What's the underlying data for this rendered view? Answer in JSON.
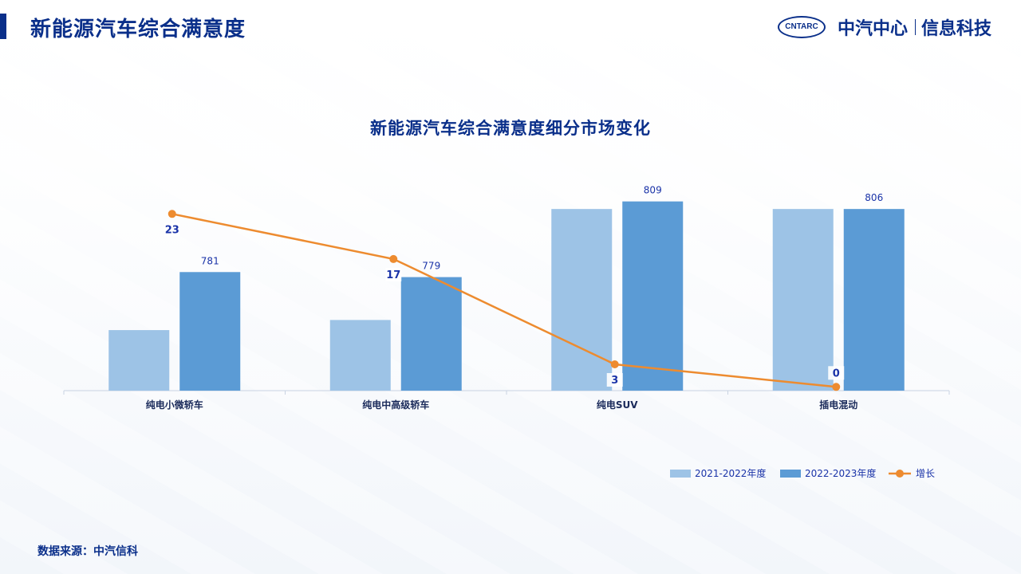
{
  "header": {
    "title": "新能源汽车综合满意度",
    "logo_badge": "CNTARC",
    "logo_cn": "中汽中心",
    "logo_tech": "信息科技"
  },
  "colors": {
    "primary": "#0a2f8a",
    "series_2021": "#9dc3e6",
    "series_2022": "#5b9bd5",
    "growth": "#ed8b2f"
  },
  "chart_data": {
    "type": "bar",
    "title": "新能源汽车综合满意度细分市场变化",
    "categories": [
      "纯电小微轿车",
      "纯电中高级轿车",
      "纯电SUV",
      "插电混动"
    ],
    "series": [
      {
        "name": "2021-2022年度",
        "type": "bar",
        "values": [
          758,
          762,
          806,
          806
        ],
        "labels": [
          "",
          "",
          "",
          ""
        ]
      },
      {
        "name": "2022-2023年度",
        "type": "bar",
        "values": [
          781,
          779,
          809,
          806
        ],
        "labels": [
          "781",
          "779",
          "809",
          "806"
        ]
      },
      {
        "name": "增长",
        "type": "line",
        "values": [
          23,
          17,
          3,
          0
        ],
        "labels": [
          "23",
          "17",
          "3",
          "0"
        ]
      }
    ],
    "bar_ylim": [
      734,
      813
    ],
    "line_ylim": [
      -0.5,
      26
    ],
    "legend_position": "bottom-right"
  },
  "footer": {
    "source": "数据来源：中汽信科"
  }
}
